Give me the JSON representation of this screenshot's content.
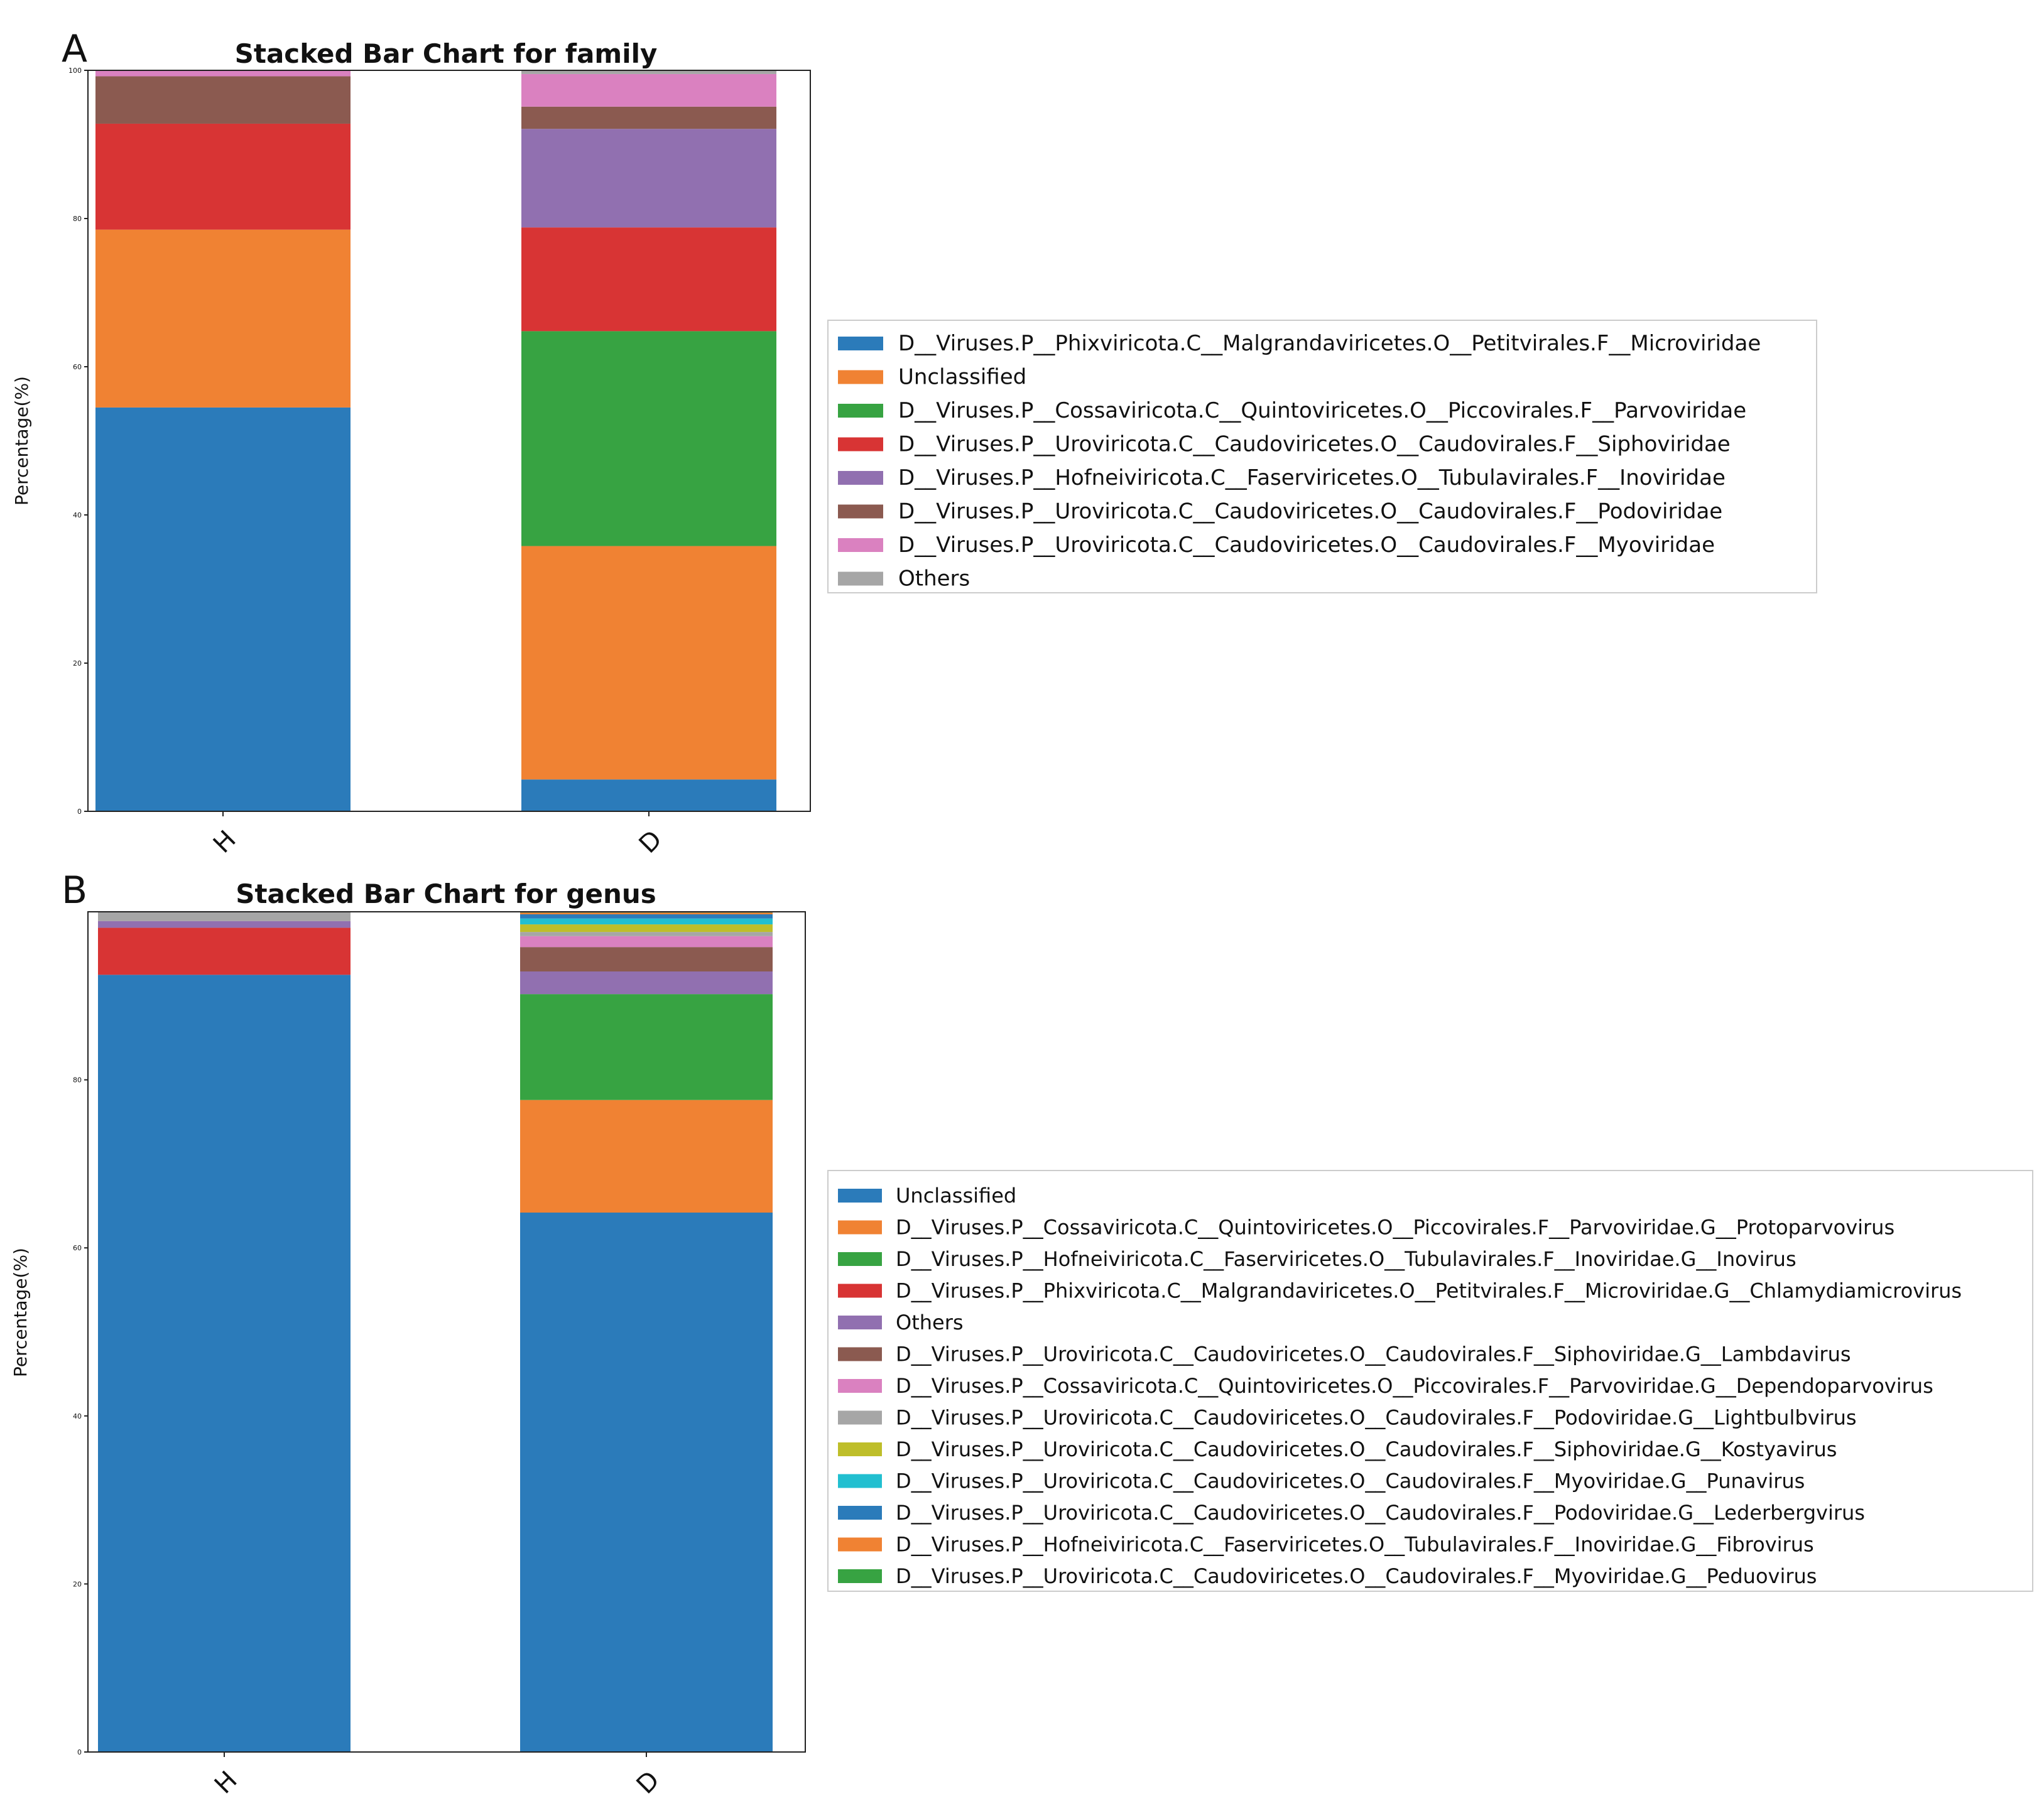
{
  "colors": [
    "#2b7bba",
    "#f08233",
    "#37a342",
    "#d83434",
    "#9170b0",
    "#8b5a50",
    "#da81c0",
    "#a6a6a6",
    "#bebe2a",
    "#22bfd0"
  ],
  "chart_data": [
    {
      "panel": "A",
      "type": "bar",
      "stacked": true,
      "title": "Stacked Bar Chart for family",
      "xlabel": "",
      "ylabel": "Percentage(%)",
      "ylim": [
        0,
        100
      ],
      "yticks": [
        0,
        20,
        40,
        60,
        80,
        100
      ],
      "categories": [
        "H",
        "D"
      ],
      "legend_position": "right",
      "series": [
        {
          "name": "D__Viruses.P__Phixviricota.C__Malgrandaviricetes.O__Petitvirales.F__Microviridae",
          "color": "#2b7bba",
          "values": [
            54.5,
            4.3
          ]
        },
        {
          "name": "Unclassified",
          "color": "#f08233",
          "values": [
            24.0,
            31.5
          ]
        },
        {
          "name": "D__Viruses.P__Cossaviricota.C__Quintoviricetes.O__Piccovirales.F__Parvoviridae",
          "color": "#37a342",
          "values": [
            0.0,
            29.0
          ]
        },
        {
          "name": "D__Viruses.P__Uroviricota.C__Caudoviricetes.O__Caudovirales.F__Siphoviridae",
          "color": "#d83434",
          "values": [
            14.3,
            14.0
          ]
        },
        {
          "name": "D__Viruses.P__Hofneiviricota.C__Faserviricetes.O__Tubulavirales.F__Inoviridae",
          "color": "#9170b0",
          "values": [
            0.0,
            13.3
          ]
        },
        {
          "name": "D__Viruses.P__Uroviricota.C__Caudoviricetes.O__Caudovirales.F__Podoviridae",
          "color": "#8b5a50",
          "values": [
            6.4,
            3.0
          ]
        },
        {
          "name": "D__Viruses.P__Uroviricota.C__Caudoviricetes.O__Caudovirales.F__Myoviridae",
          "color": "#da81c0",
          "values": [
            0.8,
            4.4
          ]
        },
        {
          "name": "Others",
          "color": "#a6a6a6",
          "values": [
            0.0,
            0.5
          ]
        }
      ]
    },
    {
      "panel": "B",
      "type": "bar",
      "stacked": true,
      "title": "Stacked Bar Chart for genus",
      "xlabel": "",
      "ylabel": "Percentage(%)",
      "ylim": [
        0,
        100
      ],
      "yticks": [
        0,
        20,
        40,
        60,
        80
      ],
      "categories": [
        "H",
        "D"
      ],
      "legend_position": "right",
      "series": [
        {
          "name": "Unclassified",
          "color": "#2b7bba",
          "values": [
            92.5,
            64.2
          ]
        },
        {
          "name": "D__Viruses.P__Cossaviricota.C__Quintoviricetes.O__Piccovirales.F__Parvoviridae.G__Protoparvovirus",
          "color": "#f08233",
          "values": [
            0.0,
            13.4
          ]
        },
        {
          "name": "D__Viruses.P__Hofneiviricota.C__Faserviricetes.O__Tubulavirales.F__Inoviridae.G__Inovirus",
          "color": "#37a342",
          "values": [
            0.0,
            12.6
          ]
        },
        {
          "name": "D__Viruses.P__Phixviricota.C__Malgrandaviricetes.O__Petitvirales.F__Microviridae.G__Chlamydiamicrovirus",
          "color": "#d83434",
          "values": [
            5.6,
            0.0
          ]
        },
        {
          "name": "Others",
          "color": "#9170b0",
          "values": [
            0.8,
            2.7
          ]
        },
        {
          "name": "D__Viruses.P__Uroviricota.C__Caudoviricetes.O__Caudovirales.F__Siphoviridae.G__Lambdavirus",
          "color": "#8b5a50",
          "values": [
            0.0,
            2.9
          ]
        },
        {
          "name": "D__Viruses.P__Cossaviricota.C__Quintoviricetes.O__Piccovirales.F__Parvoviridae.G__Dependoparvovirus",
          "color": "#da81c0",
          "values": [
            0.0,
            1.3
          ]
        },
        {
          "name": "D__Viruses.P__Uroviricota.C__Caudoviricetes.O__Caudovirales.F__Podoviridae.G__Lightbulbvirus",
          "color": "#a6a6a6",
          "values": [
            1.1,
            0.5
          ]
        },
        {
          "name": "D__Viruses.P__Uroviricota.C__Caudoviricetes.O__Caudovirales.F__Siphoviridae.G__Kostyavirus",
          "color": "#bebe2a",
          "values": [
            0.0,
            0.9
          ]
        },
        {
          "name": "D__Viruses.P__Uroviricota.C__Caudoviricetes.O__Caudovirales.F__Myoviridae.G__Punavirus",
          "color": "#22bfd0",
          "values": [
            0.0,
            0.7
          ]
        },
        {
          "name": "D__Viruses.P__Uroviricota.C__Caudoviricetes.O__Caudovirales.F__Podoviridae.G__Lederbergvirus",
          "color": "#2b7bba",
          "values": [
            0.0,
            0.5
          ]
        },
        {
          "name": "D__Viruses.P__Hofneiviricota.C__Faserviricetes.O__Tubulavirales.F__Inoviridae.G__Fibrovirus",
          "color": "#f08233",
          "values": [
            0.0,
            0.2
          ]
        },
        {
          "name": "D__Viruses.P__Uroviricota.C__Caudoviricetes.O__Caudovirales.F__Myoviridae.G__Peduovirus",
          "color": "#37a342",
          "values": [
            0.0,
            0.1
          ]
        }
      ]
    }
  ]
}
